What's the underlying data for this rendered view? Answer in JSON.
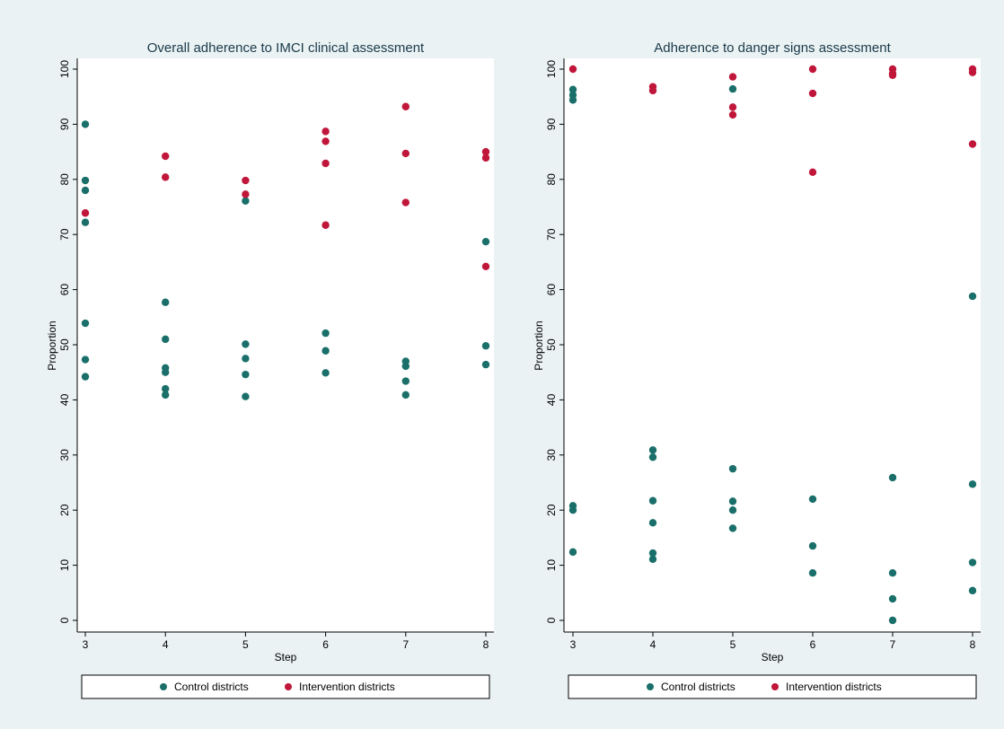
{
  "colors": {
    "background": "#eaf2f3",
    "plot_background": "#ffffff",
    "control": "#1a6f6a",
    "intervention": "#c0163a"
  },
  "chart_data": [
    {
      "type": "scatter",
      "title": "Overall adherence to IMCI clinical assessment",
      "xlabel": "Step",
      "ylabel": "Proportion",
      "xlim": [
        3,
        8
      ],
      "ylim": [
        0,
        100
      ],
      "x_ticks": [
        "3",
        "4",
        "5",
        "6",
        "7",
        "8"
      ],
      "y_ticks": [
        "0",
        "10",
        "20",
        "30",
        "40",
        "50",
        "60",
        "70",
        "80",
        "90",
        "100"
      ],
      "grid": true,
      "legend_position": "bottom",
      "series": [
        {
          "name": "Control districts",
          "color": "#1a6f6a",
          "points": [
            [
              3,
              90
            ],
            [
              3,
              79.8
            ],
            [
              3,
              78
            ],
            [
              3,
              72.2
            ],
            [
              3,
              53.9
            ],
            [
              3,
              47.3
            ],
            [
              3,
              44.2
            ],
            [
              4,
              57.7
            ],
            [
              4,
              51
            ],
            [
              4,
              45.8
            ],
            [
              4,
              45
            ],
            [
              4,
              42
            ],
            [
              4,
              40.9
            ],
            [
              5,
              76.1
            ],
            [
              5,
              50.1
            ],
            [
              5,
              47.5
            ],
            [
              5,
              44.6
            ],
            [
              5,
              40.6
            ],
            [
              6,
              52.1
            ],
            [
              6,
              48.9
            ],
            [
              6,
              44.9
            ],
            [
              7,
              47
            ],
            [
              7,
              46.1
            ],
            [
              7,
              43.4
            ],
            [
              7,
              40.9
            ],
            [
              8,
              68.7
            ],
            [
              8,
              49.8
            ],
            [
              8,
              46.4
            ]
          ]
        },
        {
          "name": "Intervention districts",
          "color": "#c0163a",
          "points": [
            [
              3,
              73.9
            ],
            [
              4,
              84.2
            ],
            [
              4,
              80.4
            ],
            [
              5,
              79.8
            ],
            [
              5,
              77.3
            ],
            [
              6,
              88.7
            ],
            [
              6,
              86.9
            ],
            [
              6,
              82.9
            ],
            [
              6,
              71.7
            ],
            [
              7,
              93.2
            ],
            [
              7,
              84.7
            ],
            [
              7,
              75.8
            ],
            [
              8,
              85
            ],
            [
              8,
              83.9
            ],
            [
              8,
              64.2
            ]
          ]
        }
      ]
    },
    {
      "type": "scatter",
      "title": "Adherence to danger signs assessment",
      "xlabel": "Step",
      "ylabel": "Proportion",
      "xlim": [
        3,
        8
      ],
      "ylim": [
        0,
        100
      ],
      "x_ticks": [
        "3",
        "4",
        "5",
        "6",
        "7",
        "8"
      ],
      "y_ticks": [
        "0",
        "10",
        "20",
        "30",
        "40",
        "50",
        "60",
        "70",
        "80",
        "90",
        "100"
      ],
      "grid": true,
      "legend_position": "bottom",
      "series": [
        {
          "name": "Control districts",
          "color": "#1a6f6a",
          "points": [
            [
              3,
              96.3
            ],
            [
              3,
              95.3
            ],
            [
              3,
              94.4
            ],
            [
              3,
              20.8
            ],
            [
              3,
              20
            ],
            [
              3,
              12.4
            ],
            [
              4,
              30.9
            ],
            [
              4,
              29.6
            ],
            [
              4,
              21.7
            ],
            [
              4,
              17.7
            ],
            [
              4,
              12.2
            ],
            [
              4,
              11.1
            ],
            [
              5,
              96.4
            ],
            [
              5,
              27.5
            ],
            [
              5,
              21.6
            ],
            [
              5,
              20
            ],
            [
              5,
              16.7
            ],
            [
              6,
              22
            ],
            [
              6,
              13.5
            ],
            [
              6,
              8.6
            ],
            [
              7,
              25.9
            ],
            [
              7,
              8.6
            ],
            [
              7,
              3.9
            ],
            [
              7,
              0
            ],
            [
              8,
              58.8
            ],
            [
              8,
              24.7
            ],
            [
              8,
              10.5
            ],
            [
              8,
              5.4
            ]
          ]
        },
        {
          "name": "Intervention districts",
          "color": "#c0163a",
          "points": [
            [
              3,
              100
            ],
            [
              4,
              96.8
            ],
            [
              4,
              96.1
            ],
            [
              5,
              98.6
            ],
            [
              5,
              93.1
            ],
            [
              5,
              91.7
            ],
            [
              6,
              100
            ],
            [
              6,
              95.6
            ],
            [
              6,
              81.3
            ],
            [
              7,
              100
            ],
            [
              7,
              99.2
            ],
            [
              7,
              98.9
            ],
            [
              8,
              100
            ],
            [
              8,
              99.4
            ],
            [
              8,
              86.4
            ]
          ]
        }
      ]
    }
  ]
}
